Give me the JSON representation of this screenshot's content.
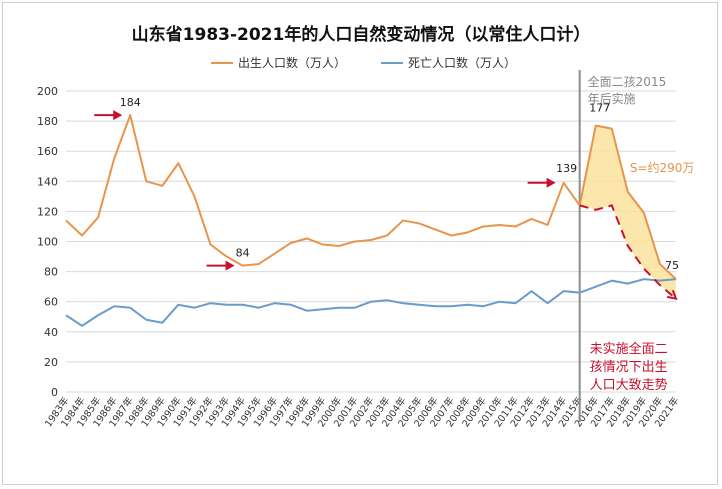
{
  "chart_data": {
    "type": "line",
    "title": "山东省1983-2021年的人口自然变动情况（以常住人口计）",
    "xlabel": "",
    "ylabel": "",
    "ylim": [
      0,
      200
    ],
    "yticks": [
      0,
      20,
      40,
      60,
      80,
      100,
      120,
      140,
      160,
      180,
      200
    ],
    "categories": [
      "1983年",
      "1984年",
      "1985年",
      "1986年",
      "1987年",
      "1988年",
      "1989年",
      "1990年",
      "1991年",
      "1992年",
      "1993年",
      "1994年",
      "1995年",
      "1996年",
      "1997年",
      "1998年",
      "1999年",
      "2000年",
      "2001年",
      "2002年",
      "2003年",
      "2004年",
      "2005年",
      "2006年",
      "2007年",
      "2008年",
      "2009年",
      "2010年",
      "2011年",
      "2012年",
      "2013年",
      "2014年",
      "2015年",
      "2016年",
      "2017年",
      "2018年",
      "2019年",
      "2020年",
      "2021年"
    ],
    "legend_position": "top-center",
    "grid": "horizontal",
    "series": [
      {
        "name": "出生人口数（万人）",
        "color": "#E8944A",
        "values": [
          114,
          104,
          116,
          155,
          184,
          140,
          137,
          152,
          130,
          98,
          90,
          84,
          85,
          92,
          99,
          102,
          98,
          97,
          100,
          101,
          104,
          114,
          112,
          108,
          104,
          106,
          110,
          111,
          110,
          115,
          111,
          139,
          124,
          177,
          175,
          133,
          119,
          85,
          75
        ]
      },
      {
        "name": "死亡人口数（万人）",
        "color": "#6B9BC8",
        "values": [
          51,
          44,
          51,
          57,
          56,
          48,
          46,
          58,
          56,
          59,
          58,
          58,
          56,
          59,
          58,
          54,
          55,
          56,
          56,
          60,
          61,
          59,
          58,
          57,
          57,
          58,
          57,
          60,
          59,
          67,
          59,
          67,
          66,
          70,
          74,
          72,
          75,
          74,
          75
        ]
      }
    ],
    "counterfactual": {
      "name": "未实施全面二孩情况下出生人口大致走势",
      "color": "#C8102E",
      "x_start": "2015年",
      "values": [
        124,
        121,
        124,
        97,
        82,
        71,
        62
      ]
    },
    "shaded_area_label": "S=约290万",
    "policy_line": {
      "x": "2015年",
      "label_line1": "全面二孩2015",
      "label_line2": "年后实施"
    },
    "annotations": [
      {
        "x": "1987年",
        "value": 184,
        "text": "184",
        "arrow": true
      },
      {
        "x": "1994年",
        "value": 84,
        "text": "84",
        "arrow": true
      },
      {
        "x": "2014年",
        "value": 139,
        "text": "139",
        "arrow": true
      },
      {
        "x": "2016年",
        "value": 177,
        "text": "177",
        "arrow": false
      },
      {
        "x": "2021年",
        "value": 75,
        "text": "75",
        "arrow": false
      }
    ],
    "counterfactual_note": [
      "未实施全面二",
      "孩情况下出生",
      "人口大致走势"
    ]
  },
  "colors": {
    "axis_text": "#333333",
    "grid": "#d9d9d9",
    "shade": "#FAE29C",
    "policy_line": "#8c8c8c",
    "arrow": "#C8102E",
    "area_label": "#E8944A"
  }
}
